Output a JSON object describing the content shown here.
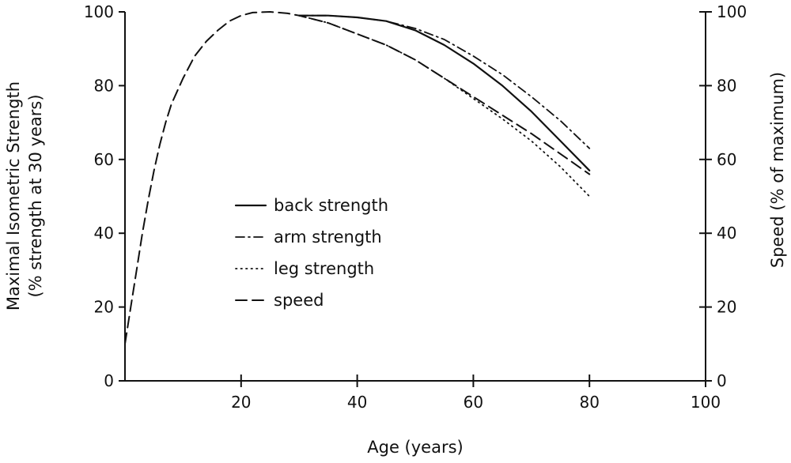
{
  "chart_data": {
    "type": "line",
    "title": "",
    "xlabel": "Age (years)",
    "ylabel_left": [
      "Maximal Isometric Strength",
      "(% strength at 30 years)"
    ],
    "ylabel_right": "Speed (% of maximum)",
    "xlim": [
      0,
      100
    ],
    "ylim": [
      0,
      100
    ],
    "x_ticks": [
      20,
      40,
      60,
      80,
      100
    ],
    "y_ticks": [
      0,
      20,
      40,
      60,
      80,
      100
    ],
    "grid": false,
    "legend_position": "center-left",
    "series": [
      {
        "name": "back strength",
        "style": "solid",
        "points": [
          [
            30,
            99
          ],
          [
            35,
            99
          ],
          [
            40,
            98.5
          ],
          [
            45,
            97.5
          ],
          [
            50,
            95
          ],
          [
            55,
            91
          ],
          [
            60,
            86
          ],
          [
            65,
            80
          ],
          [
            70,
            73
          ],
          [
            75,
            65
          ],
          [
            80,
            57
          ]
        ]
      },
      {
        "name": "arm strength",
        "style": "dashdot",
        "points": [
          [
            30,
            99
          ],
          [
            35,
            99
          ],
          [
            40,
            98.5
          ],
          [
            45,
            97.5
          ],
          [
            50,
            95.5
          ],
          [
            55,
            92.5
          ],
          [
            60,
            88
          ],
          [
            65,
            83
          ],
          [
            70,
            77
          ],
          [
            75,
            70.5
          ],
          [
            80,
            63
          ]
        ]
      },
      {
        "name": "leg strength",
        "style": "dotted",
        "points": [
          [
            30,
            99
          ],
          [
            35,
            97
          ],
          [
            40,
            94
          ],
          [
            45,
            91
          ],
          [
            50,
            87
          ],
          [
            55,
            82
          ],
          [
            60,
            76.5
          ],
          [
            65,
            71
          ],
          [
            70,
            65
          ],
          [
            75,
            58
          ],
          [
            80,
            50
          ]
        ]
      },
      {
        "name": "speed",
        "style": "dashed",
        "points": [
          [
            0,
            10
          ],
          [
            1,
            20
          ],
          [
            2,
            30
          ],
          [
            3,
            40
          ],
          [
            4,
            49
          ],
          [
            5,
            57
          ],
          [
            6,
            64
          ],
          [
            7,
            70
          ],
          [
            8,
            75
          ],
          [
            10,
            82
          ],
          [
            12,
            88
          ],
          [
            14,
            92
          ],
          [
            16,
            95
          ],
          [
            18,
            97.5
          ],
          [
            20,
            99
          ],
          [
            22,
            99.8
          ],
          [
            25,
            100
          ],
          [
            28,
            99.6
          ],
          [
            30,
            99
          ],
          [
            35,
            97
          ],
          [
            40,
            94
          ],
          [
            45,
            91
          ],
          [
            50,
            87
          ],
          [
            55,
            82
          ],
          [
            60,
            77
          ],
          [
            65,
            72
          ],
          [
            70,
            67
          ],
          [
            75,
            61.5
          ],
          [
            80,
            56
          ]
        ]
      }
    ]
  }
}
